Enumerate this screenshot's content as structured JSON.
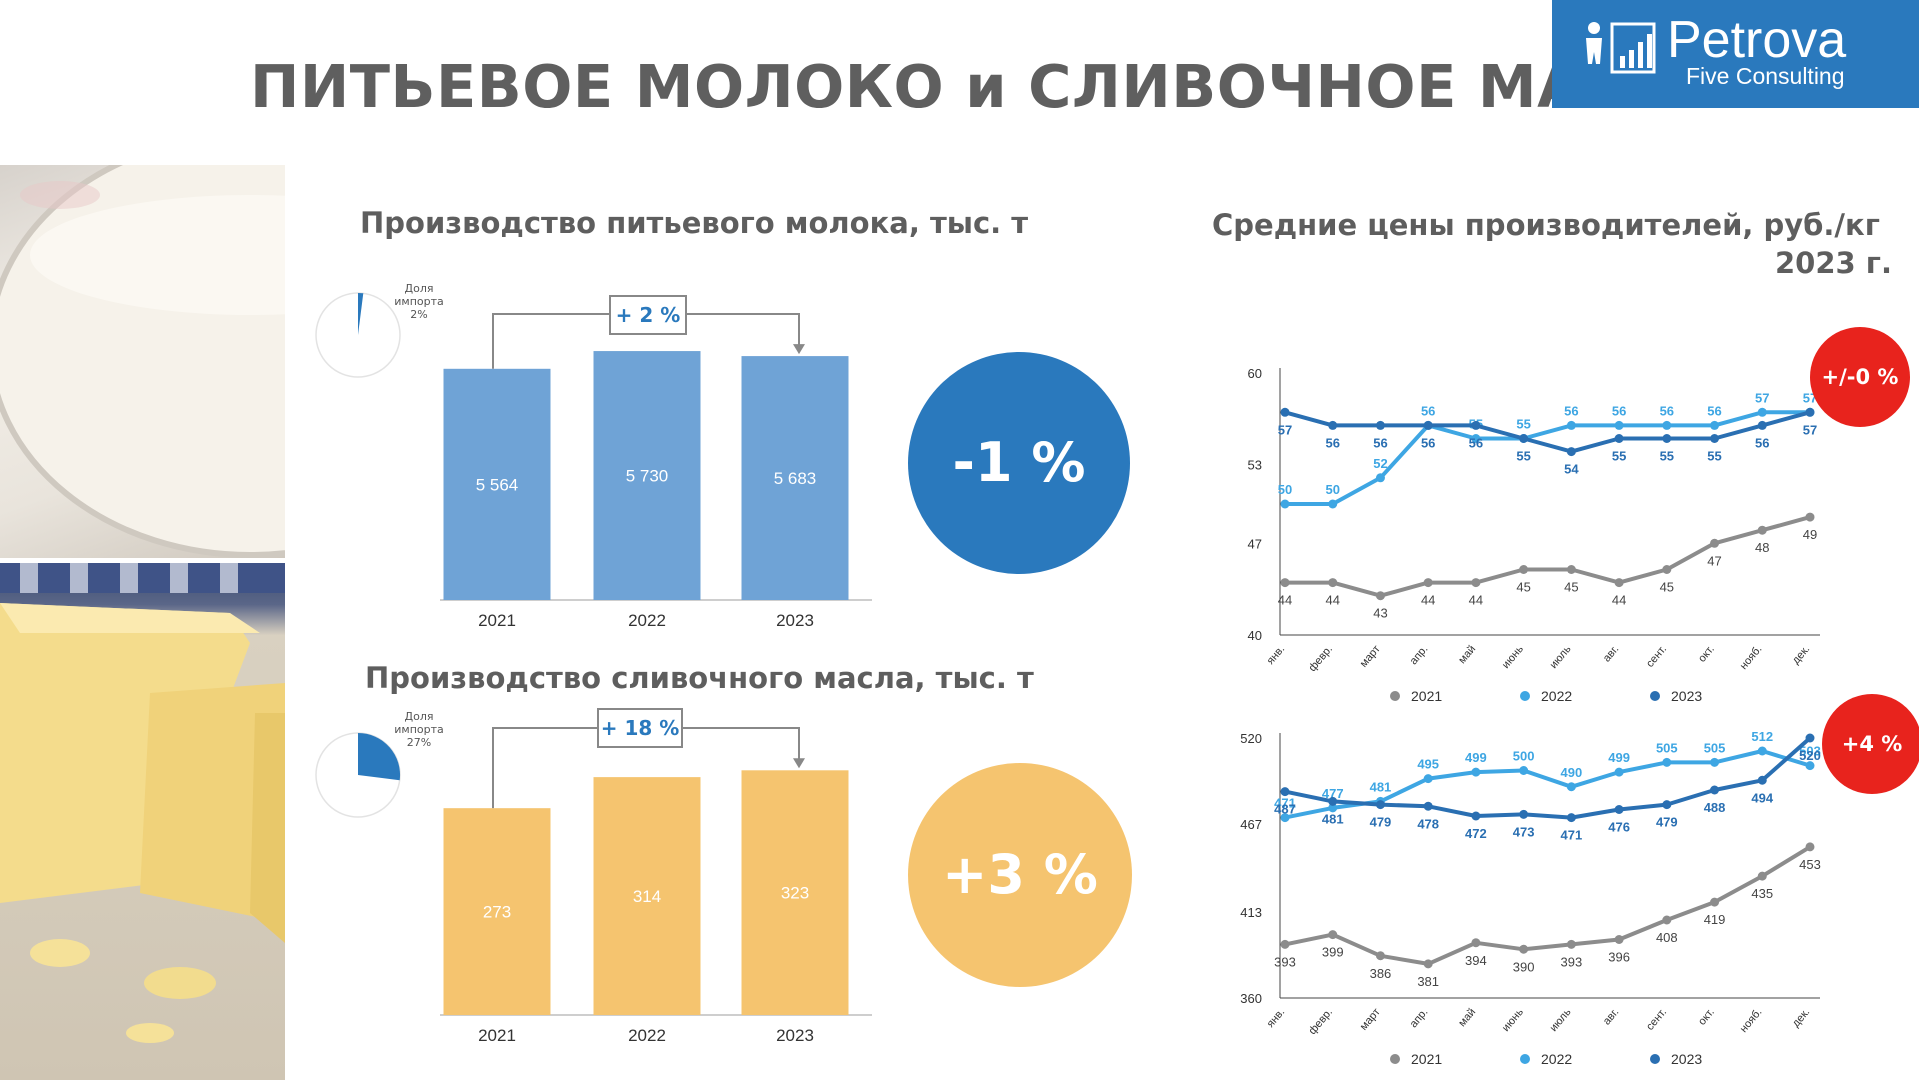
{
  "page": {
    "title": "ПИТЬЕВОЕ МОЛОКО и СЛИВОЧНОЕ МАСЛО",
    "logo": {
      "brand": "Petrova",
      "subtitle": "Five Consulting"
    }
  },
  "milk": {
    "title": "Производство питьевого молока, тыс. т",
    "import_label": [
      "Доля",
      "импорта",
      "2%"
    ],
    "import_share": 0.02,
    "growth_label": "+ 2 %",
    "change": "-1 %",
    "color": "#6fa3d6",
    "circle_color": "#2a79bd"
  },
  "butter": {
    "title": "Производство сливочного масла, тыс. т",
    "import_label": [
      "Доля",
      "импорта",
      "27%"
    ],
    "import_share": 0.27,
    "growth_label": "+ 18 %",
    "change": "+3 %",
    "color": "#f5c46f",
    "circle_color": "#f5c46f"
  },
  "prices": {
    "title": "Средние цены производителей, руб./кг",
    "year_label": "2023 г.",
    "milk_change": "+/-0 %",
    "butter_change": "+4 %",
    "badge_color": "#e8231d"
  },
  "chart_data": [
    {
      "type": "bar",
      "categories": [
        "2021",
        "2022",
        "2023"
      ],
      "values": [
        5564,
        5730,
        5683
      ],
      "value_labels": [
        "5 564",
        "5 730",
        "5 683"
      ],
      "title": "Производство питьевого молока, тыс. т"
    },
    {
      "type": "bar",
      "categories": [
        "2021",
        "2022",
        "2023"
      ],
      "values": [
        273,
        314,
        323
      ],
      "value_labels": [
        "273",
        "314",
        "323"
      ],
      "title": "Производство сливочного масла, тыс. т"
    },
    {
      "type": "line",
      "categories": [
        "янв.",
        "февр.",
        "март",
        "апр.",
        "май",
        "июнь",
        "июль",
        "авг.",
        "сент.",
        "окт.",
        "нояб.",
        "дек."
      ],
      "yticks": [
        40,
        47,
        53,
        60
      ],
      "ylim": [
        40,
        60
      ],
      "series": [
        {
          "name": "2021",
          "color": "#8c8c8c",
          "values": [
            44,
            44,
            43,
            44,
            44,
            45,
            45,
            44,
            45,
            47,
            48,
            49
          ]
        },
        {
          "name": "2022",
          "color": "#3ea6e3",
          "values": [
            50,
            50,
            52,
            56,
            55,
            55,
            56,
            56,
            56,
            56,
            57,
            57
          ]
        },
        {
          "name": "2023",
          "color": "#2a6fb2",
          "values": [
            57,
            56,
            56,
            56,
            56,
            55,
            54,
            55,
            55,
            55,
            56,
            57
          ]
        }
      ]
    },
    {
      "type": "line",
      "categories": [
        "янв.",
        "февр.",
        "март",
        "апр.",
        "май",
        "июнь",
        "июль",
        "авг.",
        "сент.",
        "окт.",
        "нояб.",
        "дек."
      ],
      "yticks": [
        360,
        413,
        467,
        520
      ],
      "ylim": [
        360,
        520
      ],
      "series": [
        {
          "name": "2021",
          "color": "#8c8c8c",
          "values": [
            393,
            399,
            386,
            381,
            394,
            390,
            393,
            396,
            408,
            419,
            435,
            453
          ]
        },
        {
          "name": "2022",
          "color": "#3ea6e3",
          "values": [
            471,
            477,
            481,
            495,
            499,
            500,
            490,
            499,
            505,
            505,
            512,
            503
          ]
        },
        {
          "name": "2023",
          "color": "#2a6fb2",
          "values": [
            487,
            481,
            479,
            478,
            472,
            473,
            471,
            476,
            479,
            488,
            494,
            520
          ]
        }
      ]
    }
  ]
}
